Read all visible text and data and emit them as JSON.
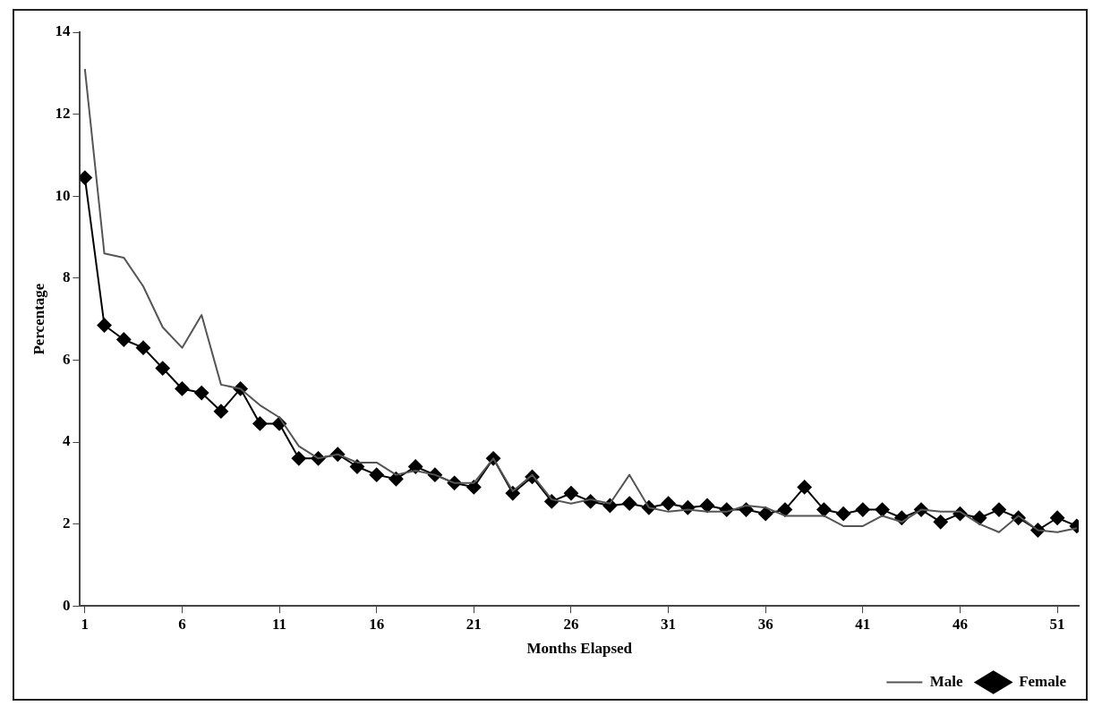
{
  "chart_data": {
    "type": "line",
    "xlabel": "Months Elapsed",
    "ylabel": "Percentage",
    "x": [
      1,
      2,
      3,
      4,
      5,
      6,
      7,
      8,
      9,
      10,
      11,
      12,
      13,
      14,
      15,
      16,
      17,
      18,
      19,
      20,
      21,
      22,
      23,
      24,
      25,
      26,
      27,
      28,
      29,
      30,
      31,
      32,
      33,
      34,
      35,
      36,
      37,
      38,
      39,
      40,
      41,
      42,
      43,
      44,
      45,
      46,
      47,
      48,
      49,
      50,
      51,
      52
    ],
    "xlim": [
      0.75,
      52.1
    ],
    "xticks": [
      1,
      6,
      11,
      16,
      21,
      26,
      31,
      36,
      41,
      46,
      51
    ],
    "ylim": [
      0,
      14
    ],
    "yticks": [
      0,
      2,
      4,
      6,
      8,
      10,
      12,
      14
    ],
    "grid": false,
    "legend": "bottom right",
    "series": [
      {
        "name": "Male",
        "color": "#555555",
        "marker": "none",
        "values": [
          13.1,
          8.6,
          8.5,
          7.8,
          6.8,
          6.3,
          7.1,
          5.4,
          5.3,
          4.9,
          4.6,
          3.9,
          3.6,
          3.7,
          3.5,
          3.5,
          3.2,
          3.3,
          3.2,
          3.0,
          3.0,
          3.6,
          2.8,
          3.2,
          2.6,
          2.5,
          2.6,
          2.5,
          3.2,
          2.4,
          2.3,
          2.35,
          2.3,
          2.3,
          2.45,
          2.4,
          2.2,
          2.2,
          2.2,
          1.95,
          1.95,
          2.2,
          2.05,
          2.35,
          2.3,
          2.3,
          2.0,
          1.8,
          2.2,
          1.85,
          1.8,
          1.9
        ]
      },
      {
        "name": "Female",
        "color": "#000000",
        "marker": "diamond",
        "values": [
          10.45,
          6.85,
          6.5,
          6.3,
          5.8,
          5.3,
          5.2,
          4.75,
          5.3,
          4.45,
          4.45,
          3.6,
          3.6,
          3.7,
          3.4,
          3.2,
          3.1,
          3.4,
          3.2,
          3.0,
          2.9,
          3.6,
          2.75,
          3.15,
          2.55,
          2.75,
          2.55,
          2.45,
          2.5,
          2.4,
          2.5,
          2.4,
          2.45,
          2.35,
          2.35,
          2.25,
          2.35,
          2.9,
          2.35,
          2.25,
          2.35,
          2.35,
          2.15,
          2.35,
          2.05,
          2.25,
          2.15,
          2.35,
          2.15,
          1.85,
          2.15,
          1.95
        ]
      }
    ]
  }
}
